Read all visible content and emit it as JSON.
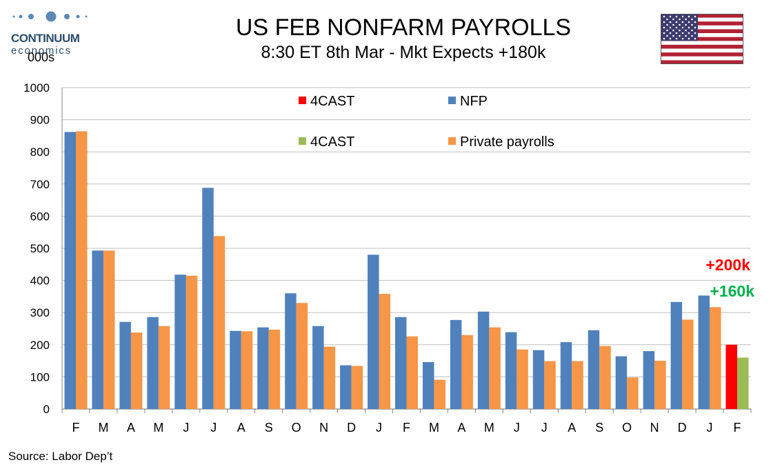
{
  "header": {
    "logo_name": "CONTINUUM",
    "logo_sub": "economics",
    "units": "000s",
    "title": "US FEB NONFARM PAYROLLS",
    "subtitle": "8:30 ET 8th Mar - Mkt Expects +180k"
  },
  "footer": {
    "source": "Source: Labor Dep’t"
  },
  "colors": {
    "nfp": "#4f81bd",
    "private": "#f79646",
    "forecast_nfp": "#ff0000",
    "forecast_private": "#9bbb59",
    "label_red": "#ff0000",
    "label_green": "#00b050"
  },
  "chart_data": {
    "type": "bar",
    "categories": [
      "F",
      "M",
      "A",
      "M",
      "J",
      "J",
      "A",
      "S",
      "O",
      "N",
      "D",
      "J",
      "F",
      "M",
      "A",
      "M",
      "J",
      "J",
      "A",
      "S",
      "O",
      "N",
      "D",
      "J",
      "F"
    ],
    "ylim": [
      0,
      1000
    ],
    "yticks": [
      0,
      100,
      200,
      300,
      400,
      500,
      600,
      700,
      800,
      900,
      1000
    ],
    "grid": true,
    "legend_placement": "top-center",
    "legend": [
      {
        "label": "4CAST",
        "color": "#ff0000"
      },
      {
        "label": "NFP",
        "color": "#4f81bd"
      },
      {
        "label": "4CAST",
        "color": "#9bbb59"
      },
      {
        "label": "Private payrolls",
        "color": "#f79646"
      }
    ],
    "series": [
      {
        "name": "NFP",
        "color": "#4f81bd",
        "values": [
          862,
          493,
          271,
          286,
          418,
          688,
          243,
          254,
          360,
          258,
          136,
          480,
          286,
          146,
          277,
          303,
          239,
          183,
          208,
          245,
          164,
          180,
          333,
          353,
          null
        ]
      },
      {
        "name": "Private payrolls",
        "color": "#f79646",
        "values": [
          864,
          493,
          238,
          258,
          415,
          538,
          242,
          247,
          330,
          194,
          134,
          358,
          226,
          91,
          230,
          254,
          185,
          149,
          149,
          196,
          98,
          150,
          278,
          317,
          null
        ]
      },
      {
        "name": "4CAST",
        "color": "#ff0000",
        "values": [
          null,
          null,
          null,
          null,
          null,
          null,
          null,
          null,
          null,
          null,
          null,
          null,
          null,
          null,
          null,
          null,
          null,
          null,
          null,
          null,
          null,
          null,
          null,
          null,
          200
        ]
      },
      {
        "name": "4CAST",
        "color": "#9bbb59",
        "values": [
          null,
          null,
          null,
          null,
          null,
          null,
          null,
          null,
          null,
          null,
          null,
          null,
          null,
          null,
          null,
          null,
          null,
          null,
          null,
          null,
          null,
          null,
          null,
          null,
          160
        ]
      }
    ],
    "annotations": [
      {
        "text": "+200k",
        "color": "#ff0000"
      },
      {
        "text": "+160k",
        "color": "#00b050"
      }
    ]
  }
}
